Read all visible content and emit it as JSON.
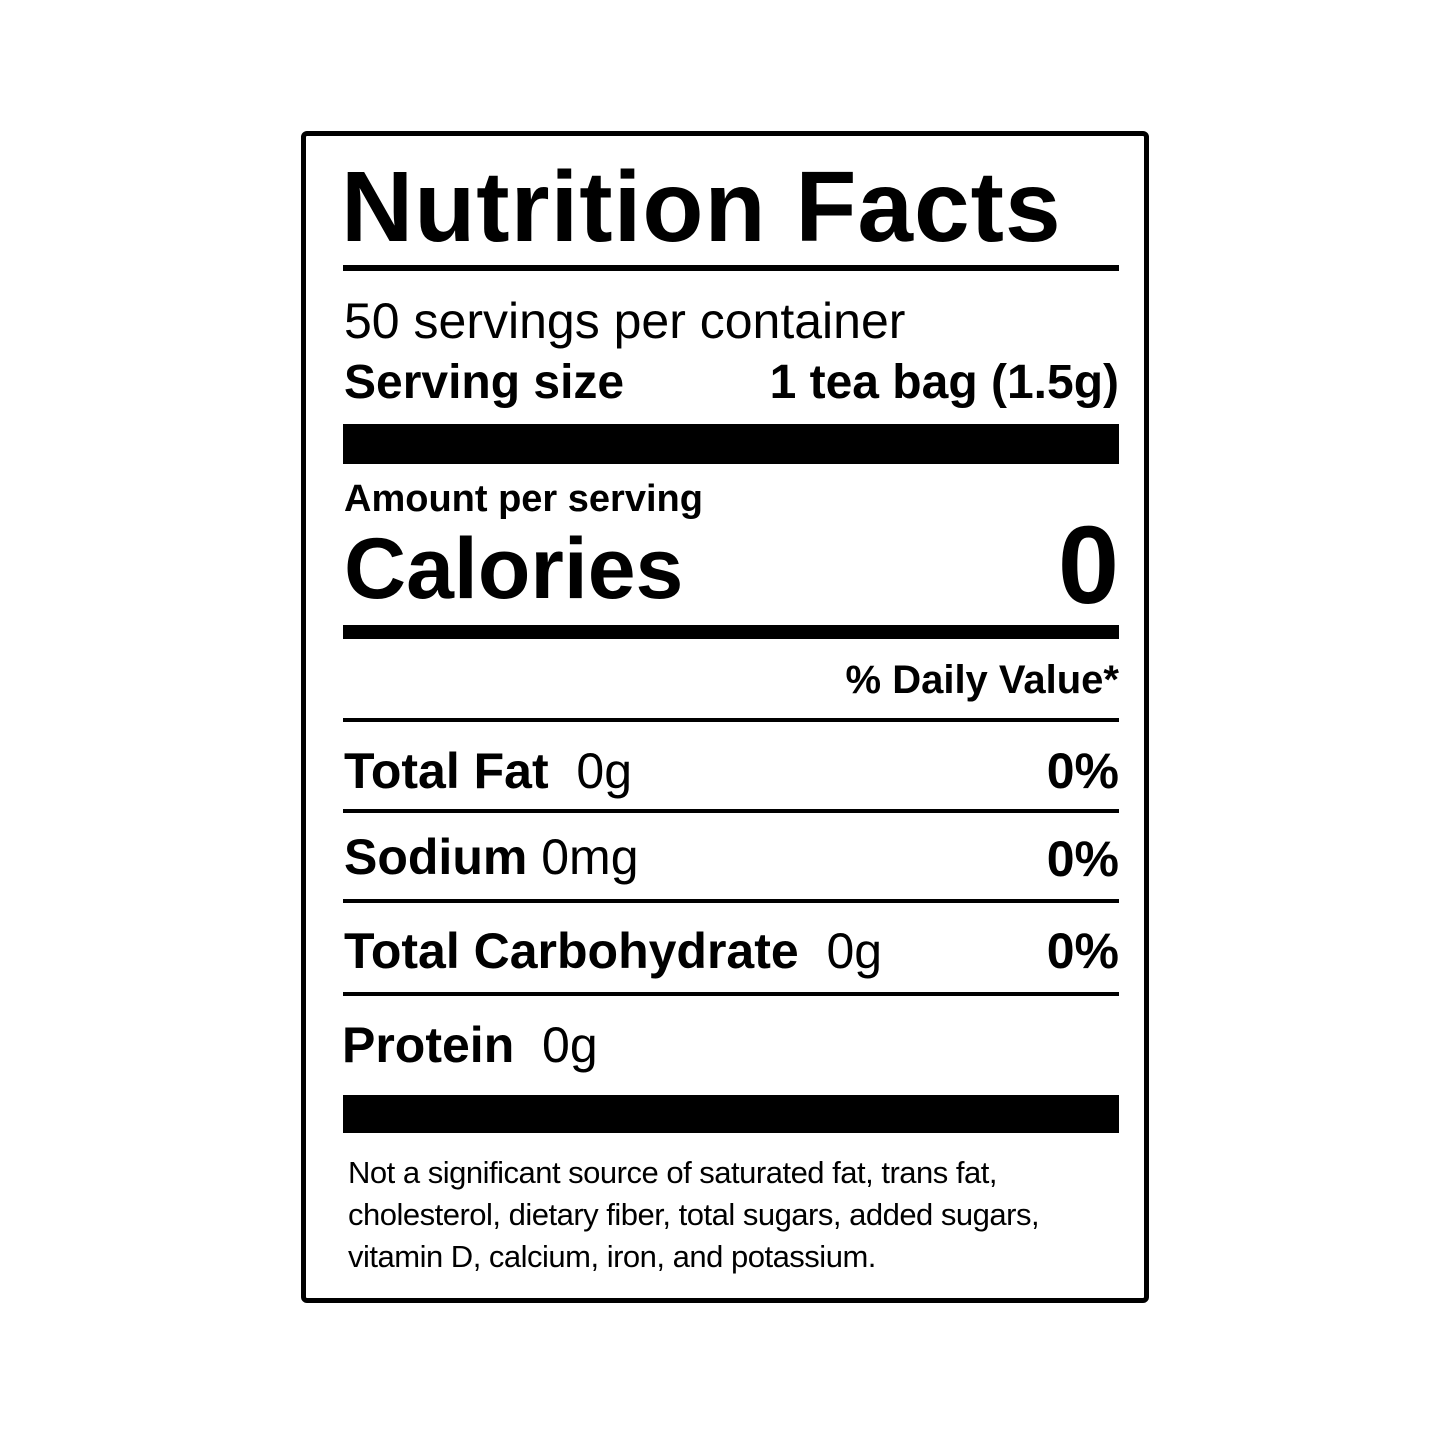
{
  "title": "Nutrition Facts",
  "servings_per_container": "50 servings per container",
  "serving_size_label": "Serving size",
  "serving_size_value": "1 tea bag (1.5g)",
  "amount_per_serving": "Amount per serving",
  "calories_label": "Calories",
  "calories_value": "0",
  "daily_value_header": "% Daily Value*",
  "nutrients": [
    {
      "name": "Total Fat",
      "amount": "0g",
      "dv": "0%"
    },
    {
      "name": "Sodium",
      "amount": "0mg",
      "dv": "0%"
    },
    {
      "name": "Total Carbohydrate",
      "amount": "0g",
      "dv": "0%"
    },
    {
      "name": "Protein",
      "amount": "0g"
    }
  ],
  "footnote": "Not a significant source of saturated fat, trans fat, cholesterol, dietary fiber, total sugars, added sugars, vitamin D, calcium, iron, and potassium."
}
